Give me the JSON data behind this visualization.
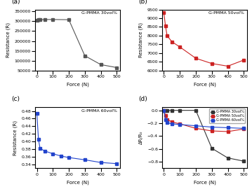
{
  "a_force": [
    0,
    10,
    20,
    50,
    100,
    200,
    300,
    400,
    500
  ],
  "a_resistance": [
    305000,
    308000,
    308000,
    309000,
    309000,
    308000,
    125000,
    80000,
    65000
  ],
  "a_color": "#555555",
  "a_label": "G-PMMA 30vol%",
  "a_ylim": [
    50000,
    360000
  ],
  "a_yticks": [
    50000,
    100000,
    150000,
    200000,
    250000,
    300000,
    350000
  ],
  "b_force": [
    0,
    10,
    20,
    50,
    100,
    200,
    300,
    400,
    500
  ],
  "b_resistance": [
    9300,
    8550,
    8000,
    7650,
    7350,
    6700,
    6400,
    6250,
    6600
  ],
  "b_color": "#cc2222",
  "b_label": "G-PMMA 50vol%",
  "b_ylim": [
    6000,
    9500
  ],
  "b_yticks": [
    6000,
    6500,
    7000,
    7500,
    8000,
    8500,
    9000,
    9500
  ],
  "c_force": [
    0,
    10,
    20,
    50,
    100,
    150,
    200,
    300,
    400,
    500
  ],
  "c_resistance": [
    0.473,
    0.405,
    0.382,
    0.375,
    0.368,
    0.362,
    0.358,
    0.352,
    0.345,
    0.342
  ],
  "c_color": "#2244cc",
  "c_label": "G-PMMA 60vol%",
  "c_ylim": [
    0.33,
    0.49
  ],
  "c_yticks": [
    0.34,
    0.36,
    0.38,
    0.4,
    0.42,
    0.44,
    0.46,
    0.48
  ],
  "d_force": [
    0,
    10,
    20,
    50,
    100,
    200,
    300,
    400,
    500
  ],
  "d_30_dRR": [
    0.0,
    0.0,
    0.0,
    0.0,
    0.0,
    0.0,
    -0.59,
    -0.74,
    -0.79
  ],
  "d_50_dRR": [
    0.0,
    -0.08,
    -0.14,
    -0.18,
    -0.21,
    -0.28,
    -0.32,
    -0.33,
    -0.29
  ],
  "d_60_dRR": [
    0.0,
    -0.14,
    -0.19,
    -0.21,
    -0.22,
    -0.24,
    -0.26,
    -0.27,
    -0.28
  ],
  "d_30_color": "#333333",
  "d_50_color": "#cc2222",
  "d_60_color": "#2244cc",
  "d_30_label": "G-PMMA 30vol%",
  "d_50_label": "G-PMMA 50vol%",
  "d_60_label": "G-PMMA 60vol%",
  "d_ylim": [
    -0.9,
    0.05
  ],
  "d_yticks": [
    -0.8,
    -0.6,
    -0.4,
    -0.2,
    0.0
  ],
  "xlabel": "Force (N)",
  "ylabel_resistance": "Resistance (R)",
  "ylabel_d": "ΔR/R₀",
  "xlim": [
    -10,
    520
  ],
  "xticks": [
    0,
    100,
    200,
    300,
    400,
    500
  ]
}
